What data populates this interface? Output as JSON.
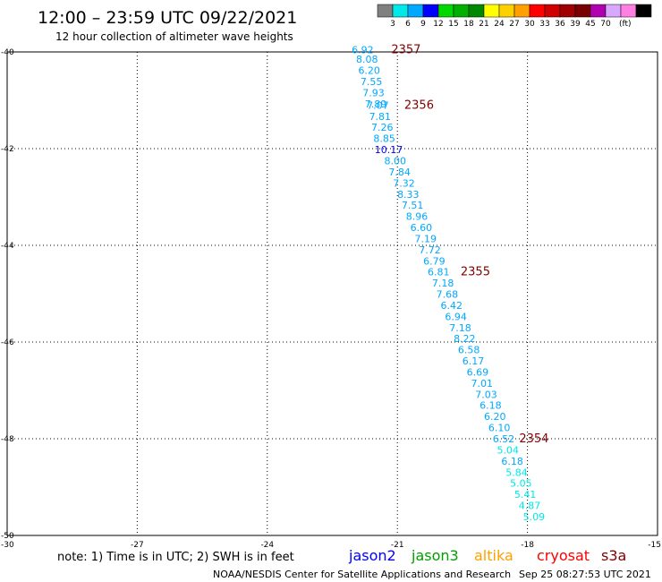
{
  "header": {
    "title": "12:00 – 23:59 UTC 09/22/2021",
    "subtitle": "12 hour collection of altimeter wave heights"
  },
  "legend": {
    "colors": [
      "#808080",
      "#00e8e8",
      "#00a8ff",
      "#0000ff",
      "#00d800",
      "#00b000",
      "#008800",
      "#ffff00",
      "#ffd000",
      "#ffa000",
      "#ff0000",
      "#d00000",
      "#a00000",
      "#780000",
      "#b000b0",
      "#d8a8ff",
      "#ff80e0",
      "#000000"
    ],
    "labels": [
      "3",
      "6",
      "9",
      "12",
      "15",
      "18",
      "21",
      "24",
      "27",
      "30",
      "33",
      "36",
      "39",
      "45",
      "70"
    ],
    "unit": "(ft)"
  },
  "footer": {
    "note": "note: 1) Time is in UTC; 2) SWH is in feet",
    "satellites": [
      {
        "name": "jason2",
        "color": "#0000ff"
      },
      {
        "name": "jason3",
        "color": "#00a000"
      },
      {
        "name": "altika",
        "color": "#ffa000"
      },
      {
        "name": "cryosat",
        "color": "#ff0000"
      },
      {
        "name": "s3a",
        "color": "#800000"
      }
    ],
    "credit": "NOAA/NESDIS Center for Satellite Applications and Research",
    "timestamp": "Sep 25 08:27:53 UTC 2021"
  },
  "chart_data": {
    "type": "scatter",
    "xlim": [
      -30,
      -15
    ],
    "ylim": [
      -50,
      -40
    ],
    "x_ticks": [
      -30,
      -27,
      -24,
      -21,
      -18,
      -15
    ],
    "y_ticks": [
      -40,
      -42,
      -44,
      -46,
      -48,
      -50
    ],
    "grid": true,
    "points": [
      {
        "x": -21.8,
        "y": -39.95,
        "label": "6.92",
        "color": "#00a8ff"
      },
      {
        "x": -21.7,
        "y": -40.15,
        "label": "8.08",
        "color": "#00a8ff"
      },
      {
        "x": -21.65,
        "y": -40.38,
        "label": "6.20",
        "color": "#00a8ff"
      },
      {
        "x": -21.6,
        "y": -40.61,
        "label": "7.55",
        "color": "#00a8ff"
      },
      {
        "x": -21.55,
        "y": -40.84,
        "label": "7.93",
        "color": "#00a8ff"
      },
      {
        "x": -21.5,
        "y": -41.07,
        "label": "7.89",
        "color": "#00a8ff"
      },
      {
        "x": -21.45,
        "y": -41.1,
        "label": "7.07",
        "color": "#00a8ff"
      },
      {
        "x": -21.4,
        "y": -41.33,
        "label": "7.81",
        "color": "#00a8ff"
      },
      {
        "x": -21.35,
        "y": -41.56,
        "label": "7.26",
        "color": "#00a8ff"
      },
      {
        "x": -21.3,
        "y": -41.79,
        "label": "8.85",
        "color": "#00a8ff"
      },
      {
        "x": -21.2,
        "y": -42.02,
        "label": "10.17",
        "color": "#0000ff"
      },
      {
        "x": -21.05,
        "y": -42.25,
        "label": "8.00",
        "color": "#00a8ff"
      },
      {
        "x": -20.95,
        "y": -42.48,
        "label": "7.84",
        "color": "#00a8ff"
      },
      {
        "x": -20.85,
        "y": -42.71,
        "label": "7.32",
        "color": "#00a8ff"
      },
      {
        "x": -20.75,
        "y": -42.94,
        "label": "8.33",
        "color": "#00a8ff"
      },
      {
        "x": -20.65,
        "y": -43.17,
        "label": "7.51",
        "color": "#00a8ff"
      },
      {
        "x": -20.55,
        "y": -43.4,
        "label": "8.96",
        "color": "#00a8ff"
      },
      {
        "x": -20.45,
        "y": -43.63,
        "label": "6.60",
        "color": "#00a8ff"
      },
      {
        "x": -20.35,
        "y": -43.86,
        "label": "7.19",
        "color": "#00a8ff"
      },
      {
        "x": -20.25,
        "y": -44.09,
        "label": "7.72",
        "color": "#00a8ff"
      },
      {
        "x": -20.15,
        "y": -44.32,
        "label": "6.79",
        "color": "#00a8ff"
      },
      {
        "x": -20.05,
        "y": -44.55,
        "label": "6.81",
        "color": "#00a8ff"
      },
      {
        "x": -19.95,
        "y": -44.78,
        "label": "7.18",
        "color": "#00a8ff"
      },
      {
        "x": -19.85,
        "y": -45.01,
        "label": "7.68",
        "color": "#00a8ff"
      },
      {
        "x": -19.75,
        "y": -45.24,
        "label": "6.42",
        "color": "#00a8ff"
      },
      {
        "x": -19.65,
        "y": -45.47,
        "label": "6.94",
        "color": "#00a8ff"
      },
      {
        "x": -19.55,
        "y": -45.7,
        "label": "7.18",
        "color": "#00a8ff"
      },
      {
        "x": -19.45,
        "y": -45.93,
        "label": "8.22",
        "color": "#00a8ff"
      },
      {
        "x": -19.35,
        "y": -46.16,
        "label": "6.58",
        "color": "#00a8ff"
      },
      {
        "x": -19.25,
        "y": -46.39,
        "label": "6.17",
        "color": "#00a8ff"
      },
      {
        "x": -19.15,
        "y": -46.62,
        "label": "6.69",
        "color": "#00a8ff"
      },
      {
        "x": -19.05,
        "y": -46.85,
        "label": "7.01",
        "color": "#00a8ff"
      },
      {
        "x": -18.95,
        "y": -47.08,
        "label": "7.03",
        "color": "#00a8ff"
      },
      {
        "x": -18.85,
        "y": -47.31,
        "label": "6.18",
        "color": "#00a8ff"
      },
      {
        "x": -18.75,
        "y": -47.54,
        "label": "6.20",
        "color": "#00a8ff"
      },
      {
        "x": -18.65,
        "y": -47.77,
        "label": "6.10",
        "color": "#00a8ff"
      },
      {
        "x": -18.55,
        "y": -48.0,
        "label": "6.52",
        "color": "#00a8ff"
      },
      {
        "x": -18.45,
        "y": -48.23,
        "label": "5.04",
        "color": "#00e8e8"
      },
      {
        "x": -18.35,
        "y": -48.46,
        "label": "6.18",
        "color": "#00a8ff"
      },
      {
        "x": -18.25,
        "y": -48.69,
        "label": "5.84",
        "color": "#00e8e8"
      },
      {
        "x": -18.15,
        "y": -48.92,
        "label": "5.05",
        "color": "#00e8e8"
      },
      {
        "x": -18.05,
        "y": -49.15,
        "label": "5.41",
        "color": "#00e8e8"
      },
      {
        "x": -17.95,
        "y": -49.38,
        "label": "4.87",
        "color": "#00e8e8"
      },
      {
        "x": -17.85,
        "y": -49.61,
        "label": "5.09",
        "color": "#00e8e8"
      }
    ],
    "pass_labels": [
      {
        "x": -20.8,
        "y": -39.95,
        "label": "2357"
      },
      {
        "x": -20.5,
        "y": -41.1,
        "label": "2356"
      },
      {
        "x": -19.2,
        "y": -44.55,
        "label": "2355"
      },
      {
        "x": -17.85,
        "y": -48.0,
        "label": "2354"
      }
    ]
  }
}
